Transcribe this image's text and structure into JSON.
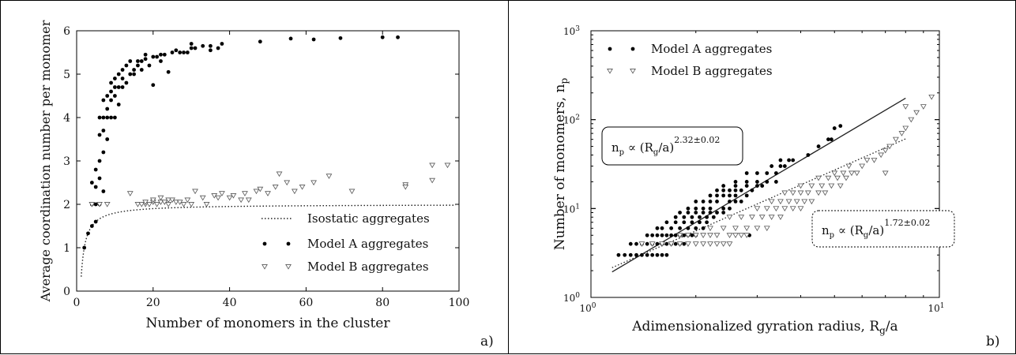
{
  "panels": {
    "a": {
      "label": "a)"
    },
    "b": {
      "label": "b)"
    }
  },
  "chart_data": [
    {
      "type": "scatter",
      "panel": "a)",
      "xlabel": "Number of monomers in the cluster",
      "ylabel": "Average coordination number per monomer",
      "xlim": [
        0,
        100
      ],
      "ylim": [
        0,
        6
      ],
      "xticks": [
        0,
        20,
        40,
        60,
        80,
        100
      ],
      "yticks": [
        0,
        1,
        2,
        3,
        4,
        5,
        6
      ],
      "grid": false,
      "legend_position": "lower-right",
      "legend": [
        "Isostatic aggregates",
        "Model A aggregates",
        "Model B aggregates"
      ],
      "isostatic_curve": {
        "name": "Isostatic aggregates",
        "formula": "2 - 3/N + ... (approx 2(N-1)/N)",
        "style": "dotted"
      },
      "series": [
        {
          "name": "Model A aggregates",
          "marker": "filled-circle",
          "x": [
            2,
            3,
            4,
            4,
            4,
            5,
            5,
            5,
            5,
            6,
            6,
            6,
            6,
            6,
            7,
            7,
            7,
            7,
            7,
            8,
            8,
            8,
            8,
            9,
            9,
            9,
            9,
            10,
            10,
            10,
            10,
            11,
            11,
            11,
            12,
            12,
            12,
            13,
            13,
            14,
            14,
            15,
            15,
            16,
            16,
            17,
            17,
            18,
            18,
            19,
            20,
            20,
            21,
            22,
            22,
            23,
            24,
            25,
            26,
            27,
            28,
            29,
            30,
            30,
            31,
            33,
            35,
            35,
            37,
            38,
            48,
            56,
            62,
            69,
            80,
            84
          ],
          "y": [
            1.0,
            1.33,
            1.5,
            2.0,
            2.5,
            1.6,
            2.0,
            2.4,
            2.8,
            2.0,
            2.6,
            3.0,
            3.6,
            4.0,
            2.3,
            3.2,
            3.7,
            4.0,
            4.4,
            3.5,
            4.0,
            4.2,
            4.5,
            4.0,
            4.6,
            4.4,
            4.8,
            4.0,
            4.5,
            4.7,
            4.9,
            4.3,
            4.7,
            5.0,
            4.7,
            4.9,
            5.1,
            4.8,
            5.2,
            5.0,
            5.3,
            5.0,
            5.1,
            5.2,
            5.3,
            5.1,
            5.3,
            5.35,
            5.45,
            5.2,
            4.75,
            5.4,
            5.4,
            5.45,
            5.3,
            5.45,
            5.05,
            5.5,
            5.55,
            5.5,
            5.5,
            5.5,
            5.7,
            5.6,
            5.6,
            5.65,
            5.55,
            5.65,
            5.6,
            5.7,
            5.75,
            5.82,
            5.8,
            5.83,
            5.85,
            5.85
          ]
        },
        {
          "name": "Model B aggregates",
          "marker": "open-down-triangle",
          "x": [
            4,
            6,
            8,
            14,
            16,
            17,
            18,
            18,
            19,
            20,
            20,
            21,
            22,
            22,
            23,
            24,
            24,
            25,
            26,
            27,
            28,
            29,
            30,
            31,
            33,
            34,
            36,
            37,
            38,
            40,
            41,
            43,
            44,
            45,
            47,
            48,
            50,
            52,
            53,
            55,
            57,
            59,
            62,
            66,
            72,
            86,
            86,
            93,
            93,
            97
          ],
          "y": [
            2.0,
            2.0,
            2.0,
            2.25,
            2.0,
            2.0,
            2.0,
            2.05,
            2.0,
            2.05,
            2.1,
            2.0,
            2.05,
            2.15,
            2.05,
            2.0,
            2.1,
            2.1,
            2.05,
            2.05,
            2.0,
            2.1,
            2.0,
            2.3,
            2.15,
            2.0,
            2.2,
            2.15,
            2.25,
            2.15,
            2.2,
            2.1,
            2.25,
            2.1,
            2.3,
            2.35,
            2.25,
            2.4,
            2.7,
            2.5,
            2.3,
            2.4,
            2.5,
            2.65,
            2.3,
            2.45,
            2.4,
            2.9,
            2.55,
            2.9
          ]
        }
      ]
    },
    {
      "type": "scatter",
      "panel": "b)",
      "xlabel": "Adimensionalized gyration radius, R_g/a",
      "ylabel": "Number of monomers, n_p",
      "xscale": "log",
      "yscale": "log",
      "xlim": [
        1,
        10
      ],
      "ylim": [
        1,
        1000
      ],
      "grid": false,
      "legend_position": "top-left",
      "legend": [
        "Model A aggregates",
        "Model B aggregates"
      ],
      "fits": [
        {
          "series": "Model A aggregates",
          "style": "solid",
          "prefactor": 1.4,
          "exponent": 2.32,
          "x_range": [
            1.15,
            8
          ],
          "label": "n_p ∝ (R_g/a)^2.32±0.02"
        },
        {
          "series": "Model B aggregates",
          "style": "dotted",
          "prefactor": 1.7,
          "exponent": 1.72,
          "x_range": [
            1.15,
            8
          ],
          "label": "n_p ∝ (R_g/a)^1.72±0.02"
        }
      ],
      "series": [
        {
          "name": "Model A aggregates",
          "marker": "filled-circle",
          "x": [
            1.2,
            1.25,
            1.3,
            1.35,
            1.4,
            1.45,
            1.5,
            1.55,
            1.6,
            1.65,
            1.3,
            1.35,
            1.4,
            1.45,
            1.5,
            1.55,
            1.6,
            1.65,
            1.7,
            1.75,
            1.8,
            1.85,
            1.45,
            1.5,
            1.55,
            1.6,
            1.65,
            1.7,
            1.75,
            1.8,
            1.85,
            1.9,
            1.95,
            2.0,
            1.55,
            1.6,
            1.7,
            1.8,
            1.9,
            2.0,
            2.1,
            1.65,
            1.75,
            1.85,
            1.95,
            2.05,
            2.15,
            1.75,
            1.85,
            1.95,
            2.05,
            2.15,
            2.25,
            1.8,
            1.9,
            2.0,
            2.1,
            2.2,
            2.3,
            2.4,
            1.9,
            2.0,
            2.1,
            2.2,
            2.4,
            2.5,
            2.0,
            2.1,
            2.2,
            2.3,
            2.5,
            2.6,
            2.7,
            2.2,
            2.3,
            2.4,
            2.5,
            2.6,
            2.8,
            2.3,
            2.4,
            2.5,
            2.6,
            2.7,
            2.9,
            2.4,
            2.6,
            2.8,
            3.0,
            3.1,
            2.6,
            2.8,
            3.0,
            3.2,
            3.4,
            2.8,
            3.0,
            3.2,
            3.4,
            3.3,
            3.5,
            3.6,
            3.5,
            3.7,
            3.8,
            4.2,
            4.5,
            4.8,
            5.0,
            5.2,
            2.85,
            4.9
          ],
          "y": [
            3,
            3,
            3,
            3,
            3,
            3,
            3,
            3,
            3,
            3,
            4,
            4,
            4,
            4,
            4,
            4,
            4,
            4,
            4,
            4,
            4,
            4,
            5,
            5,
            5,
            5,
            5,
            5,
            5,
            5,
            5,
            5,
            5,
            5,
            6,
            6,
            6,
            6,
            6,
            6,
            6,
            7,
            7,
            7,
            7,
            7,
            7,
            8,
            8,
            8,
            8,
            8,
            8,
            9,
            9,
            9,
            9,
            9,
            9,
            9,
            10,
            10,
            10,
            10,
            10,
            10,
            12,
            12,
            12,
            12,
            12,
            12,
            12,
            14,
            14,
            14,
            14,
            14,
            14,
            16,
            16,
            16,
            16,
            16,
            16,
            18,
            18,
            18,
            18,
            18,
            20,
            20,
            20,
            20,
            20,
            25,
            25,
            25,
            25,
            30,
            30,
            30,
            35,
            35,
            35,
            40,
            50,
            60,
            80,
            85,
            5,
            60
          ]
        },
        {
          "name": "Model B aggregates",
          "marker": "open-down-triangle",
          "x": [
            1.4,
            1.5,
            1.6,
            1.7,
            1.8,
            1.9,
            2.0,
            2.1,
            2.2,
            2.3,
            2.4,
            2.5,
            1.8,
            1.9,
            2.0,
            2.1,
            2.2,
            2.3,
            2.5,
            2.6,
            2.7,
            2.8,
            2.2,
            2.4,
            2.6,
            2.8,
            3.0,
            3.2,
            2.5,
            2.7,
            2.9,
            3.1,
            3.3,
            3.5,
            3.0,
            3.2,
            3.4,
            3.6,
            3.8,
            4.0,
            3.3,
            3.5,
            3.7,
            3.9,
            4.1,
            4.3,
            3.6,
            3.8,
            4.0,
            4.2,
            4.5,
            4.7,
            4.0,
            4.3,
            4.6,
            4.9,
            5.2,
            4.5,
            4.8,
            5.1,
            5.4,
            5.0,
            5.3,
            5.6,
            5.8,
            5.5,
            6.0,
            6.2,
            6.5,
            6.8,
            7.0,
            7.2,
            7.5,
            7.8,
            8.0,
            8.3,
            8.6,
            9.0,
            9.5,
            8.0,
            7.0
          ],
          "y": [
            4,
            4,
            4,
            4,
            4,
            4,
            4,
            4,
            4,
            4,
            4,
            4,
            5,
            5,
            5,
            5,
            5,
            5,
            5,
            5,
            5,
            5,
            6,
            6,
            6,
            6,
            6,
            6,
            8,
            8,
            8,
            8,
            8,
            8,
            10,
            10,
            10,
            10,
            10,
            10,
            12,
            12,
            12,
            12,
            12,
            12,
            15,
            15,
            15,
            15,
            15,
            15,
            18,
            18,
            18,
            18,
            18,
            22,
            22,
            22,
            22,
            25,
            25,
            25,
            25,
            30,
            30,
            35,
            35,
            40,
            45,
            50,
            60,
            70,
            80,
            100,
            120,
            140,
            180,
            140,
            25
          ]
        }
      ]
    }
  ]
}
